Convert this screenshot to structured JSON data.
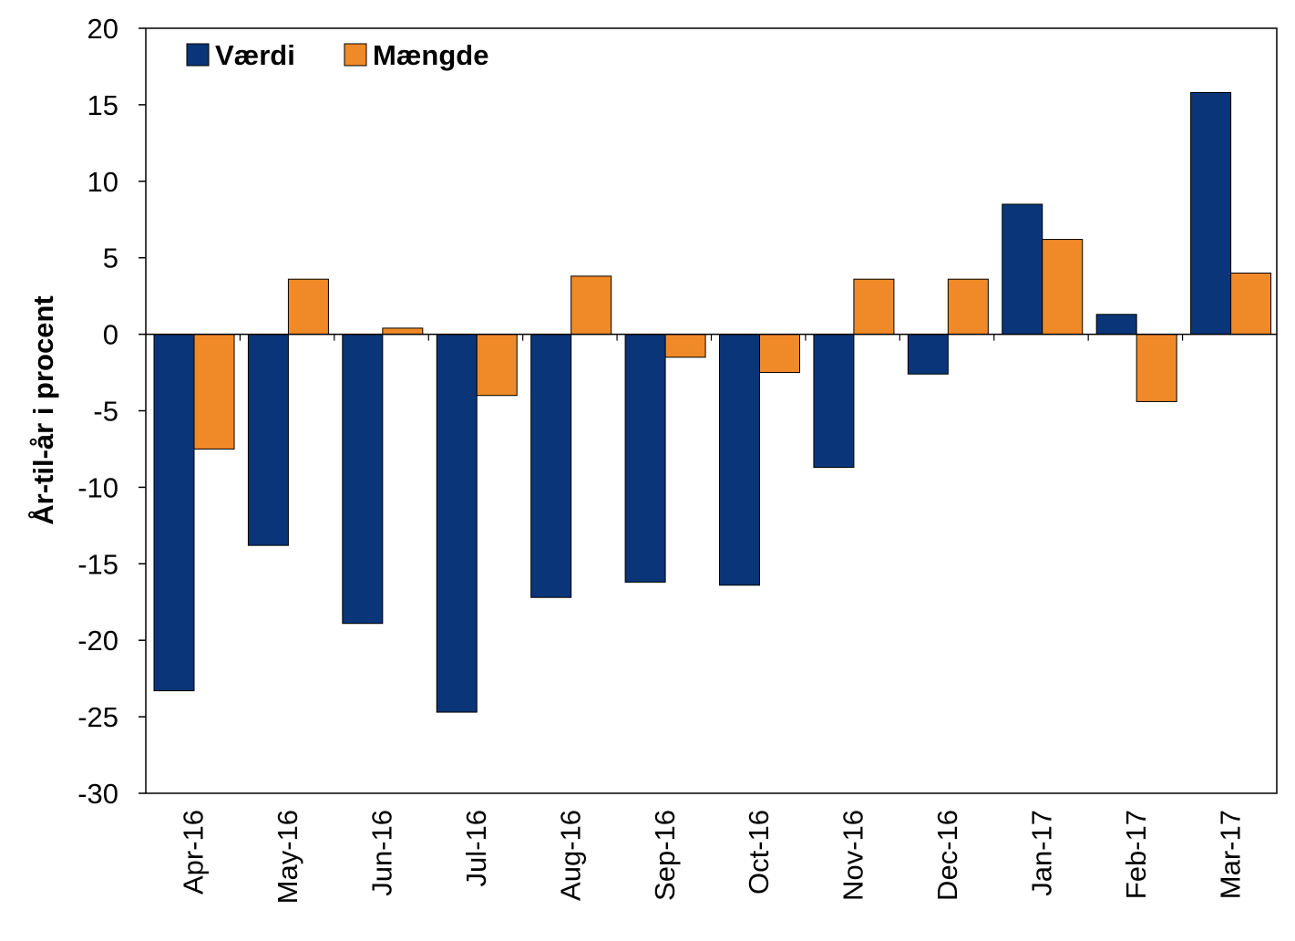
{
  "chart_data": {
    "type": "bar",
    "ylabel": "År-til-år i procent",
    "xlabel": "",
    "ylim": [
      -30,
      20
    ],
    "yticks": [
      20,
      15,
      10,
      5,
      0,
      -5,
      -10,
      -15,
      -20,
      -25,
      -30
    ],
    "legend_position": "top-left",
    "grid": false,
    "categories": [
      "Apr-16",
      "May-16",
      "Jun-16",
      "Jul-16",
      "Aug-16",
      "Sep-16",
      "Oct-16",
      "Nov-16",
      "Dec-16",
      "Jan-17",
      "Feb-17",
      "Mar-17"
    ],
    "series": [
      {
        "name": "Værdi",
        "color": "#0a3578",
        "values": [
          -23.3,
          -13.8,
          -18.9,
          -24.7,
          -17.2,
          -16.2,
          -16.4,
          -8.7,
          -2.6,
          8.5,
          1.3,
          15.8
        ]
      },
      {
        "name": "Mængde",
        "color": "#f08a28",
        "values": [
          -7.5,
          3.6,
          0.4,
          -4.0,
          3.8,
          -1.5,
          -2.5,
          3.6,
          3.6,
          6.2,
          -4.4,
          4.0
        ]
      }
    ]
  }
}
